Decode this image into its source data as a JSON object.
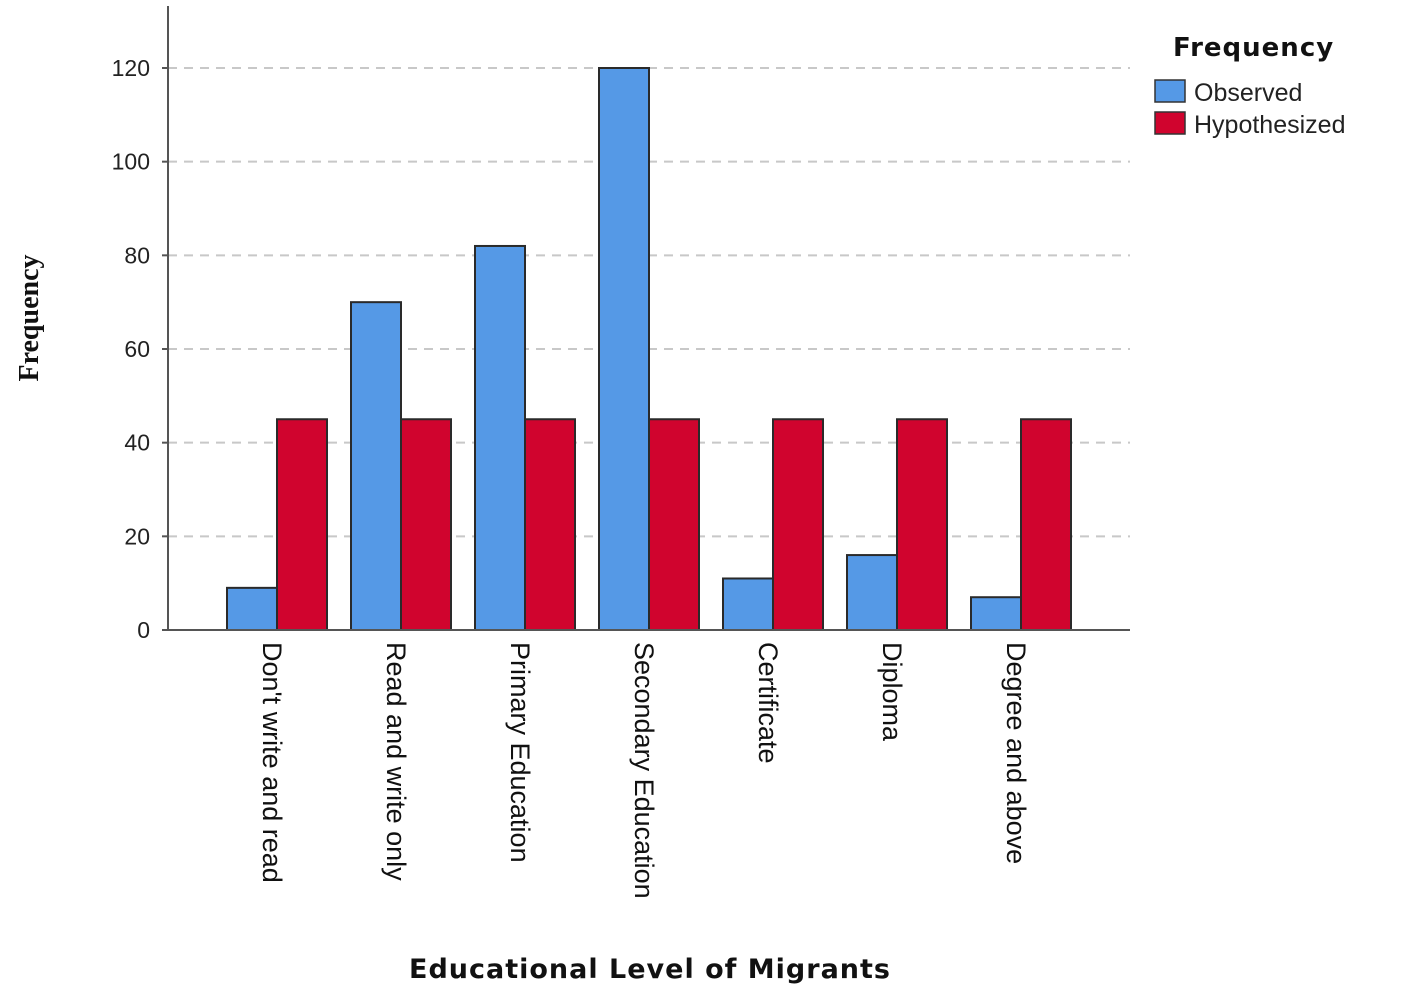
{
  "chart_data": {
    "type": "bar",
    "xlabel": "Educational Level of Migrants",
    "ylabel": "Frequency",
    "categories": [
      "Don't write and read",
      "Read and write only",
      "Primary Education",
      "Secondary Education",
      "Certificate",
      "Diploma",
      "Degree and above"
    ],
    "series": [
      {
        "name": "Observed",
        "color": "#5599e6",
        "values": [
          9,
          70,
          82,
          120,
          11,
          16,
          7
        ]
      },
      {
        "name": "Hypothesized",
        "color": "#d0042e",
        "values": [
          45,
          45,
          45,
          45,
          45,
          45,
          45
        ]
      }
    ],
    "yticks": [
      0,
      20,
      40,
      60,
      80,
      100,
      120
    ],
    "ylim": [
      0,
      132
    ],
    "grid": true,
    "legend": {
      "title": "Frequency",
      "position": "top-right"
    }
  }
}
